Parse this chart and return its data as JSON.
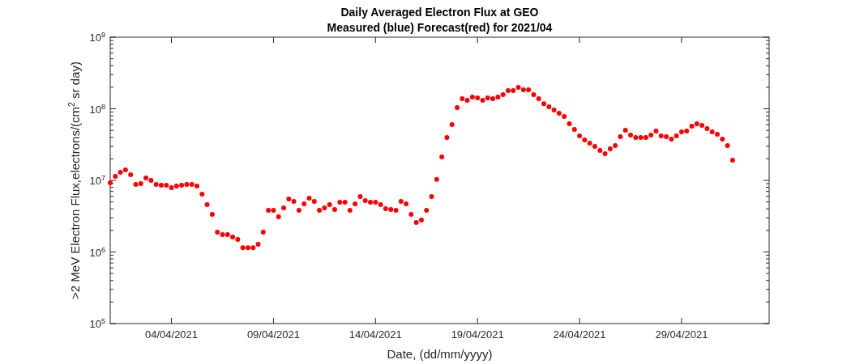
{
  "chart_data": {
    "type": "scatter",
    "title": "Daily Averaged Electron Flux at GEO",
    "subtitle": "Measured (blue) Forecast(red) for 2021/04",
    "xlabel": "Date, (dd/mm/yyyy)",
    "ylabel": ">2 MeV Electron Flux,electrons/(cm$^{2}$ sr day)",
    "log": "y",
    "marker": "circle",
    "xlim": [
      "2021-04-01T00:00",
      "2021-05-03T07:00"
    ],
    "xticks": [
      {
        "value": "2021-04-04",
        "label": "04/04/2021"
      },
      {
        "value": "2021-04-09",
        "label": "09/04/2021"
      },
      {
        "value": "2021-04-14",
        "label": "14/04/2021"
      },
      {
        "value": "2021-04-19",
        "label": "19/04/2021"
      },
      {
        "value": "2021-04-24",
        "label": "24/04/2021"
      },
      {
        "value": "2021-04-29",
        "label": "29/04/2021"
      }
    ],
    "ylim": [
      100000,
      1000000000
    ],
    "yticks": [
      {
        "value": 100000,
        "label": "10$^{5}$"
      },
      {
        "value": 200000,
        "label": null
      },
      {
        "value": 300000,
        "label": null
      },
      {
        "value": 400000,
        "label": null
      },
      {
        "value": 500000,
        "label": null
      },
      {
        "value": 600000,
        "label": null
      },
      {
        "value": 700000,
        "label": null
      },
      {
        "value": 800000,
        "label": null
      },
      {
        "value": 900000,
        "label": null
      },
      {
        "value": 1000000,
        "label": "10$^{6}$"
      },
      {
        "value": 2000000,
        "label": null
      },
      {
        "value": 3000000,
        "label": null
      },
      {
        "value": 4000000,
        "label": null
      },
      {
        "value": 5000000,
        "label": null
      },
      {
        "value": 6000000,
        "label": null
      },
      {
        "value": 7000000,
        "label": null
      },
      {
        "value": 8000000,
        "label": null
      },
      {
        "value": 9000000,
        "label": null
      },
      {
        "value": 10000000,
        "label": "10$^{7}$"
      },
      {
        "value": 20000000,
        "label": null
      },
      {
        "value": 30000000,
        "label": null
      },
      {
        "value": 40000000,
        "label": null
      },
      {
        "value": 50000000,
        "label": null
      },
      {
        "value": 60000000,
        "label": null
      },
      {
        "value": 70000000,
        "label": null
      },
      {
        "value": 80000000,
        "label": null
      },
      {
        "value": 90000000,
        "label": null
      },
      {
        "value": 100000000,
        "label": "10$^{8}$"
      },
      {
        "value": 200000000,
        "label": null
      },
      {
        "value": 300000000,
        "label": null
      },
      {
        "value": 400000000,
        "label": null
      },
      {
        "value": 500000000,
        "label": null
      },
      {
        "value": 600000000,
        "label": null
      },
      {
        "value": 700000000,
        "label": null
      },
      {
        "value": 800000000,
        "label": null
      },
      {
        "value": 900000000,
        "label": null
      },
      {
        "value": 1000000000,
        "label": "10$^{9}$"
      }
    ],
    "x": [
      "2021-04-01T00:00",
      "2021-04-01T06:00",
      "2021-04-01T12:00",
      "2021-04-01T18:00",
      "2021-04-02T00:00",
      "2021-04-02T06:00",
      "2021-04-02T12:00",
      "2021-04-02T18:00",
      "2021-04-03T00:00",
      "2021-04-03T06:00",
      "2021-04-03T12:00",
      "2021-04-03T18:00",
      "2021-04-04T00:00",
      "2021-04-04T06:00",
      "2021-04-04T12:00",
      "2021-04-04T18:00",
      "2021-04-05T00:00",
      "2021-04-05T06:00",
      "2021-04-05T12:00",
      "2021-04-05T18:00",
      "2021-04-06T00:00",
      "2021-04-06T06:00",
      "2021-04-06T12:00",
      "2021-04-06T18:00",
      "2021-04-07T00:00",
      "2021-04-07T06:00",
      "2021-04-07T12:00",
      "2021-04-07T18:00",
      "2021-04-08T00:00",
      "2021-04-08T06:00",
      "2021-04-08T12:00",
      "2021-04-08T18:00",
      "2021-04-09T00:00",
      "2021-04-09T06:00",
      "2021-04-09T12:00",
      "2021-04-09T18:00",
      "2021-04-10T00:00",
      "2021-04-10T06:00",
      "2021-04-10T12:00",
      "2021-04-10T18:00",
      "2021-04-11T00:00",
      "2021-04-11T06:00",
      "2021-04-11T12:00",
      "2021-04-11T18:00",
      "2021-04-12T00:00",
      "2021-04-12T06:00",
      "2021-04-12T12:00",
      "2021-04-12T18:00",
      "2021-04-13T00:00",
      "2021-04-13T06:00",
      "2021-04-13T12:00",
      "2021-04-13T18:00",
      "2021-04-14T00:00",
      "2021-04-14T06:00",
      "2021-04-14T12:00",
      "2021-04-14T18:00",
      "2021-04-15T00:00",
      "2021-04-15T06:00",
      "2021-04-15T12:00",
      "2021-04-15T18:00",
      "2021-04-16T00:00",
      "2021-04-16T06:00",
      "2021-04-16T12:00",
      "2021-04-16T18:00",
      "2021-04-17T00:00",
      "2021-04-17T06:00",
      "2021-04-17T12:00",
      "2021-04-17T18:00",
      "2021-04-18T00:00",
      "2021-04-18T06:00",
      "2021-04-18T12:00",
      "2021-04-18T18:00",
      "2021-04-19T00:00",
      "2021-04-19T06:00",
      "2021-04-19T12:00",
      "2021-04-19T18:00",
      "2021-04-20T00:00",
      "2021-04-20T06:00",
      "2021-04-20T12:00",
      "2021-04-20T18:00",
      "2021-04-21T00:00",
      "2021-04-21T06:00",
      "2021-04-21T12:00",
      "2021-04-21T18:00",
      "2021-04-22T00:00",
      "2021-04-22T06:00",
      "2021-04-22T12:00",
      "2021-04-22T18:00",
      "2021-04-23T00:00",
      "2021-04-23T06:00",
      "2021-04-23T12:00",
      "2021-04-23T18:00",
      "2021-04-24T00:00",
      "2021-04-24T06:00",
      "2021-04-24T12:00",
      "2021-04-24T18:00",
      "2021-04-25T00:00",
      "2021-04-25T06:00",
      "2021-04-25T12:00",
      "2021-04-25T18:00",
      "2021-04-26T00:00",
      "2021-04-26T06:00",
      "2021-04-26T12:00",
      "2021-04-26T18:00",
      "2021-04-27T00:00",
      "2021-04-27T06:00",
      "2021-04-27T12:00",
      "2021-04-27T18:00",
      "2021-04-28T00:00",
      "2021-04-28T06:00",
      "2021-04-28T12:00",
      "2021-04-28T18:00",
      "2021-04-29T00:00",
      "2021-04-29T06:00",
      "2021-04-29T12:00",
      "2021-04-29T18:00",
      "2021-04-30T00:00",
      "2021-04-30T06:00",
      "2021-04-30T12:00",
      "2021-04-30T18:00",
      "2021-05-01T00:00",
      "2021-05-01T06:00",
      "2021-05-01T12:00"
    ],
    "series": [
      {
        "color": "#ff0000",
        "values": [
          9250000.0,
          11400000.0,
          13000000.0,
          14000000.0,
          12000000.0,
          8780000.0,
          9010000.0,
          10800000.0,
          10000000.0,
          8780000.0,
          8550000.0,
          8550000.0,
          7910000.0,
          8330000.0,
          8550000.0,
          8780000.0,
          8780000.0,
          8330000.0,
          6430000.0,
          4580000.0,
          3350000.0,
          1890000.0,
          1750000.0,
          1750000.0,
          1620000.0,
          1500000.0,
          1150000.0,
          1150000.0,
          1150000.0,
          1280000.0,
          1890000.0,
          3820000.0,
          3820000.0,
          3100000.0,
          4130000.0,
          5500000.0,
          5080000.0,
          3820000.0,
          4700000.0,
          5640000.0,
          5080000.0,
          3820000.0,
          4130000.0,
          4580000.0,
          3920000.0,
          4950000.0,
          4950000.0,
          3820000.0,
          4700000.0,
          5940000.0,
          5220000.0,
          4950000.0,
          4950000.0,
          4580000.0,
          4020000.0,
          3920000.0,
          3820000.0,
          5080000.0,
          4700000.0,
          3350000.0,
          2580000.0,
          2800000.0,
          3820000.0,
          5940000.0,
          10300000.0,
          21300000.0,
          39700000.0,
          60200000.0,
          104000000.0,
          138000000.0,
          131000000.0,
          146000000.0,
          142000000.0,
          131000000.0,
          142000000.0,
          138000000.0,
          146000000.0,
          158000000.0,
          180000000.0,
          180000000.0,
          199000000.0,
          184000000.0,
          184000000.0,
          158000000.0,
          138000000.0,
          118000000.0,
          107000000.0,
          96200000.0,
          86700000.0,
          78100000.0,
          61800000.0,
          51500000.0,
          41800000.0,
          36700000.0,
          33100000.0,
          29800000.0,
          26200000.0,
          23600000.0,
          27600000.0,
          30600000.0,
          40800000.0,
          50200000.0,
          42900000.0,
          39700000.0,
          39700000.0,
          39700000.0,
          42900000.0,
          48900000.0,
          41800000.0,
          40800000.0,
          37700000.0,
          41800000.0,
          47600000.0,
          48900000.0,
          57200000.0,
          61800000.0,
          58700000.0,
          52900000.0,
          47600000.0,
          44100000.0,
          37700000.0,
          30600000.0,
          19200000.0
        ]
      }
    ]
  }
}
